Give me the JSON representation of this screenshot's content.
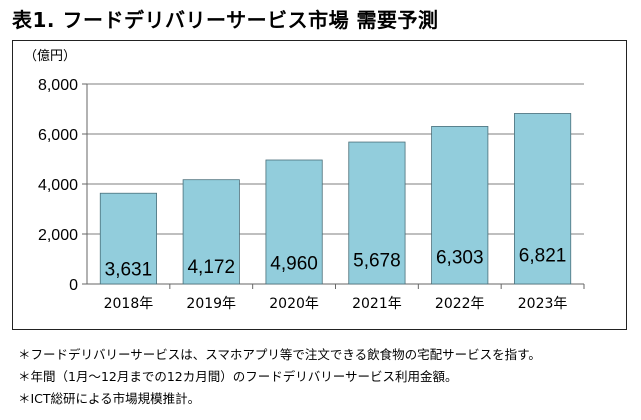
{
  "title": "表1. フードデリバリーサービス市場 需要予測",
  "colors": {
    "bar": "#92cddc",
    "bar_edge": "#4a6f7a",
    "axis": "#666666",
    "grid": "#7f7f7f"
  },
  "chart_data": {
    "type": "bar",
    "title": "表1. フードデリバリーサービス市場 需要予測",
    "ylabel": "（億円）",
    "xlabel": "",
    "categories": [
      "2018年",
      "2019年",
      "2020年",
      "2021年",
      "2022年",
      "2023年"
    ],
    "values": [
      3631,
      4172,
      4960,
      5678,
      6303,
      6821
    ],
    "value_labels": [
      "3,631",
      "4,172",
      "4,960",
      "5,678",
      "6,303",
      "6,821"
    ],
    "ylim": [
      0,
      8000
    ],
    "yticks": [
      0,
      2000,
      4000,
      6000,
      8000
    ],
    "ytick_labels": [
      "0",
      "2,000",
      "4,000",
      "6,000",
      "8,000"
    ],
    "grid": true,
    "legend": false
  },
  "notes": [
    "＊フードデリバリーサービスは、スマホアプリ等で注文できる飲食物の宅配サービスを指す。",
    "＊年間（1月～12月までの12カ月間）のフードデリバリーサービス利用金額。",
    "＊ICT総研による市場規模推計。"
  ]
}
